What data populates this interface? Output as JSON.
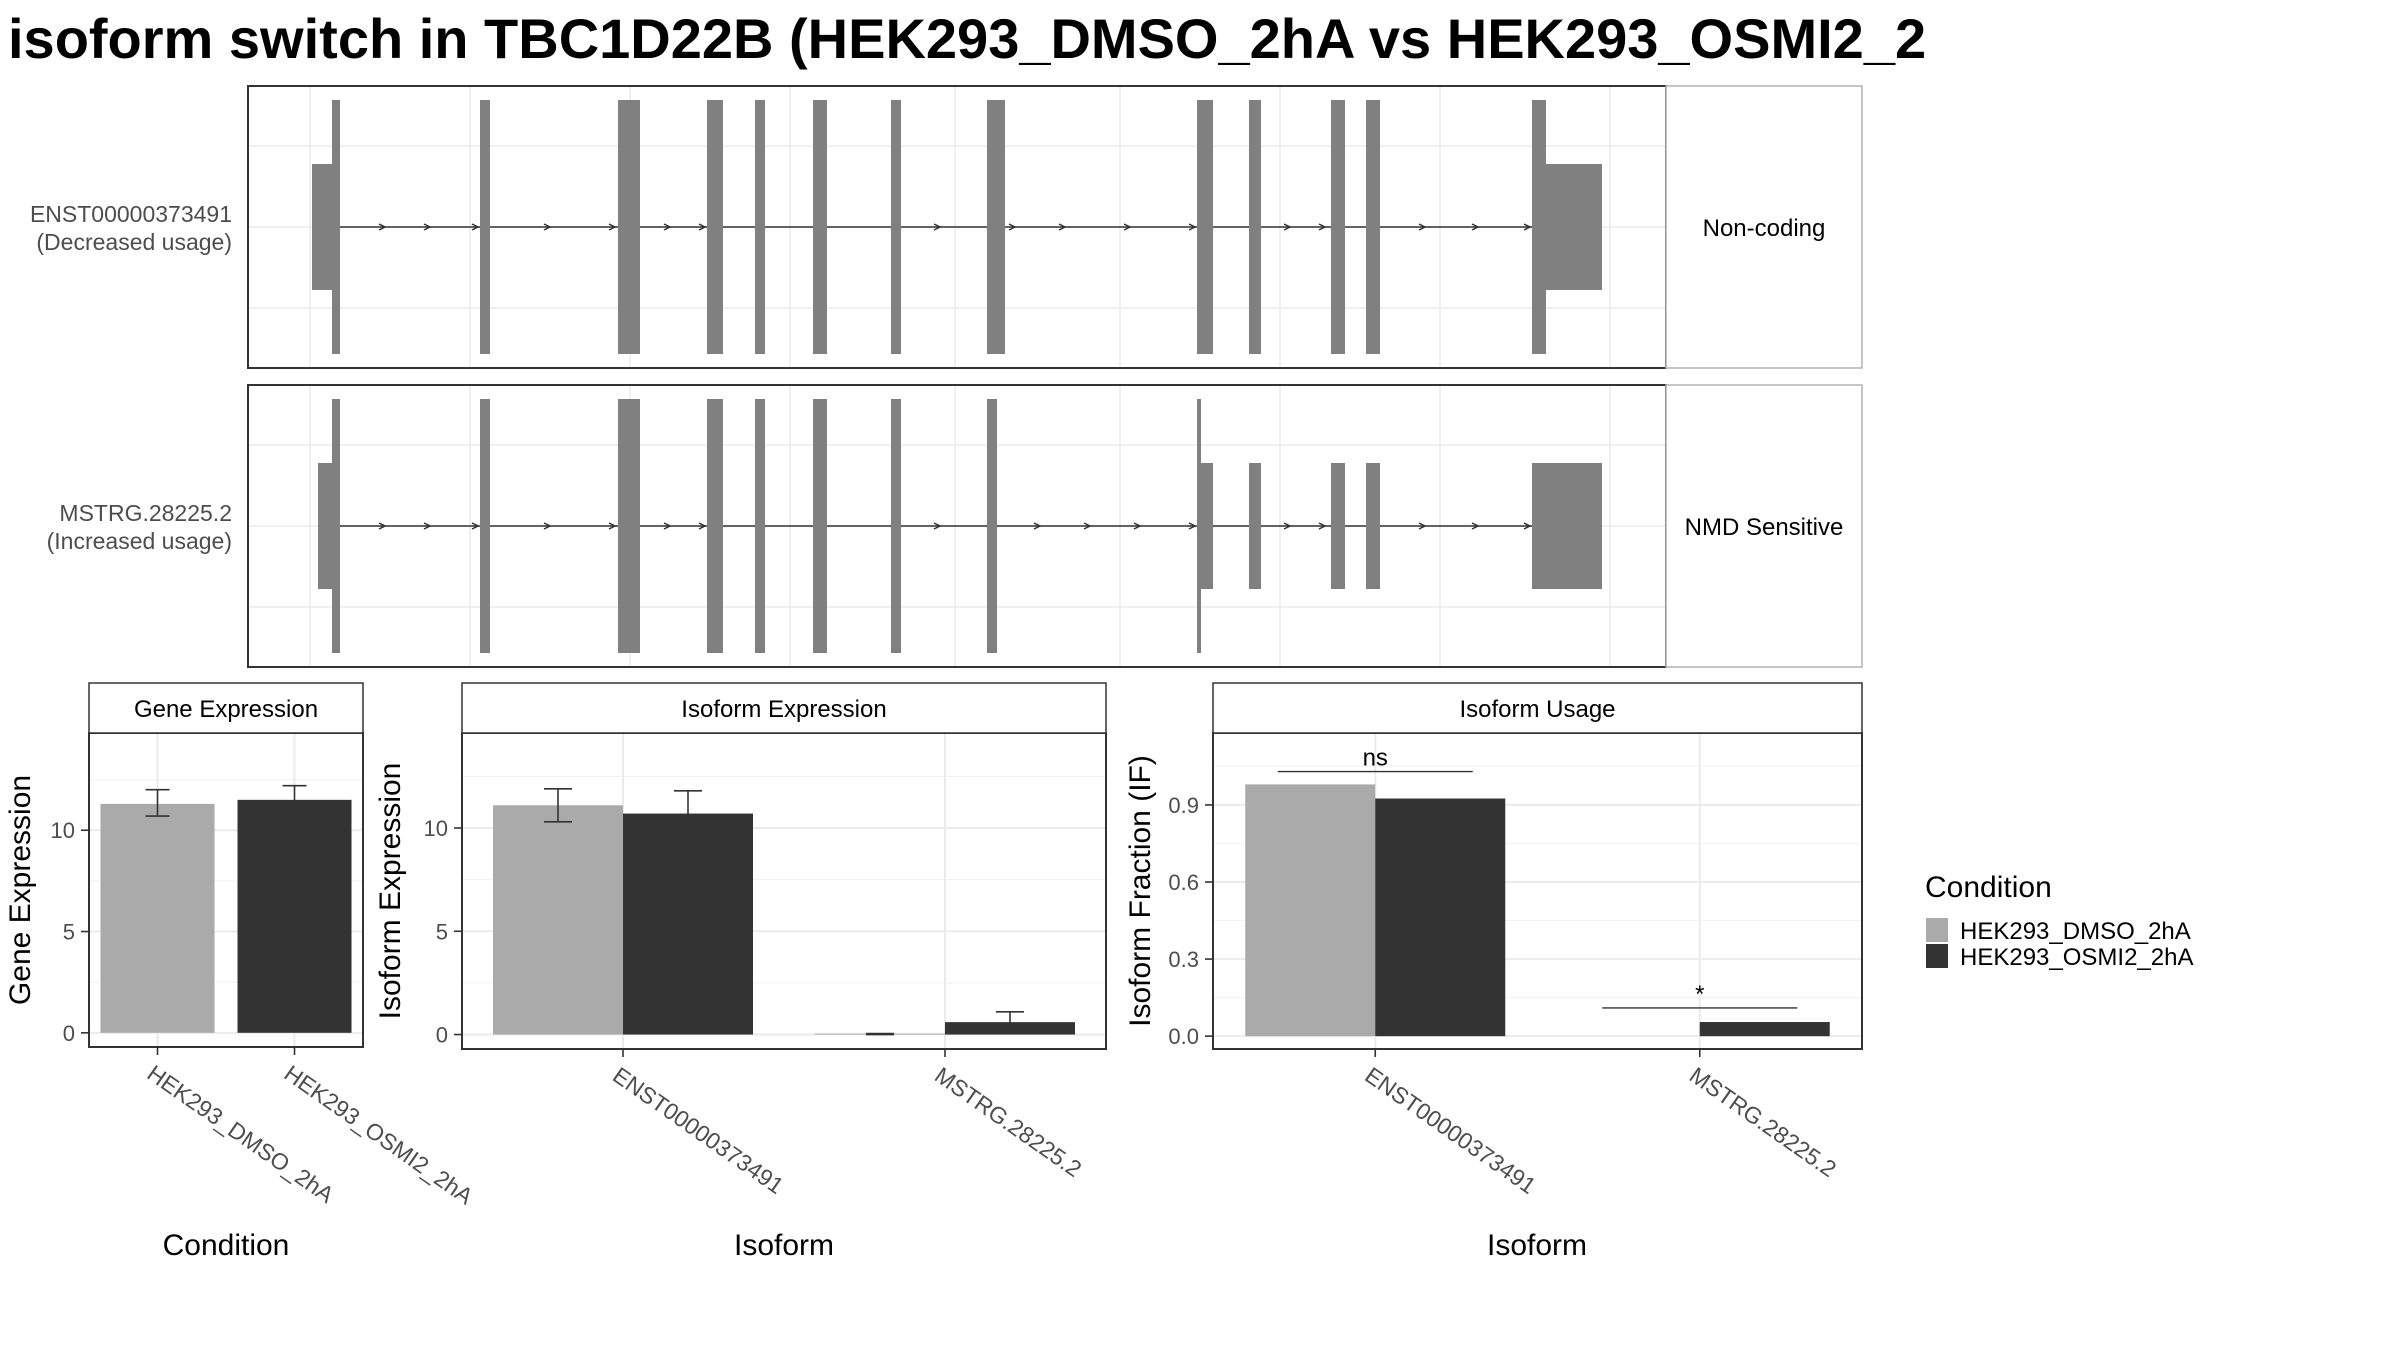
{
  "title": "isoform switch in TBC1D22B (HEK293_DMSO_2hA vs HEK293_OSMI2_2",
  "structure_panel": {
    "tracks": [
      {
        "label_line1": "ENST00000373491",
        "label_line2": "(Decreased usage)",
        "strip": "Non-coding"
      },
      {
        "label_line1": "MSTRG.28225.2",
        "label_line2": "(Increased usage)",
        "strip": "NMD Sensitive"
      }
    ]
  },
  "colors": {
    "HEK293_DMSO_2hA": "#aaaaaa",
    "HEK293_OSMI2_2hA": "#333333",
    "exon": "#808080",
    "panel_border": "#333333",
    "grid": "#ebebeb"
  },
  "legend": {
    "title": "Condition",
    "items": [
      {
        "label": "HEK293_DMSO_2hA",
        "color": "#aaaaaa"
      },
      {
        "label": "HEK293_OSMI2_2hA",
        "color": "#333333"
      }
    ]
  },
  "chart_data": [
    {
      "type": "bar",
      "title": "Gene Expression",
      "xlabel": "Condition",
      "ylabel": "Gene Expression",
      "categories": [
        "HEK293_DMSO_2hA",
        "HEK293_OSMI2_2hA"
      ],
      "values": [
        11.3,
        11.5
      ],
      "errors": [
        [
          10.7,
          12.0
        ],
        [
          10.8,
          12.2
        ]
      ],
      "yticks": [
        0,
        5,
        10
      ],
      "ytick_labels": [
        "0",
        "5",
        "10"
      ],
      "ylim": [
        -0.7,
        14.8
      ]
    },
    {
      "type": "bar",
      "title": "Isoform Expression",
      "xlabel": "Isoform",
      "ylabel": "Isoform Expression",
      "categories": [
        "ENST00000373491",
        "MSTRG.28225.2"
      ],
      "series": [
        {
          "name": "HEK293_DMSO_2hA",
          "values": [
            11.1,
            0.05
          ],
          "errors": [
            [
              10.3,
              11.9
            ],
            [
              0.0,
              0.05
            ]
          ]
        },
        {
          "name": "HEK293_OSMI2_2hA",
          "values": [
            10.7,
            0.6
          ],
          "errors": [
            [
              9.6,
              11.8
            ],
            [
              0.3,
              1.1
            ]
          ]
        }
      ],
      "yticks": [
        0,
        5,
        10
      ],
      "ytick_labels": [
        "0",
        "5",
        "10"
      ],
      "ylim": [
        -0.7,
        14.6
      ]
    },
    {
      "type": "bar",
      "title": "Isoform Usage",
      "xlabel": "Isoform",
      "ylabel": "Isoform Fraction (IF)",
      "categories": [
        "ENST00000373491",
        "MSTRG.28225.2"
      ],
      "series": [
        {
          "name": "HEK293_DMSO_2hA",
          "values": [
            0.98,
            0.0
          ]
        },
        {
          "name": "HEK293_OSMI2_2hA",
          "values": [
            0.925,
            0.055
          ]
        }
      ],
      "significance": [
        "ns",
        "*"
      ],
      "significance_y": [
        1.03,
        0.11
      ],
      "yticks": [
        0.0,
        0.3,
        0.6,
        0.9
      ],
      "ytick_labels": [
        "0.0",
        "0.3",
        "0.6",
        "0.9"
      ],
      "ylim": [
        -0.05,
        1.18
      ]
    }
  ]
}
